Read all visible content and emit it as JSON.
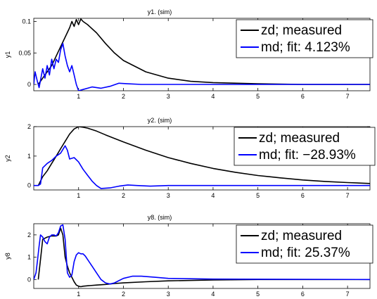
{
  "chart_data": [
    {
      "type": "line",
      "title": "y1. (sim)",
      "ylabel": "y1",
      "xlim": [
        0,
        7.5
      ],
      "ylim": [
        -0.01,
        0.105
      ],
      "xticks": [
        1,
        2,
        3,
        4,
        5,
        6,
        7
      ],
      "yticks": [
        0,
        0.05,
        0.1
      ],
      "ytick_labels": [
        "0",
        "0.05",
        "0.1"
      ],
      "legend_position": "outside-right",
      "series": [
        {
          "name": "zd; measured",
          "color": "#000000",
          "x": [
            0.1,
            0.2,
            0.3,
            0.4,
            0.5,
            0.6,
            0.7,
            0.8,
            0.85,
            0.9,
            0.95,
            1.0,
            1.05,
            1.1,
            1.2,
            1.4,
            1.6,
            1.8,
            2.0,
            2.5,
            3.0,
            3.5,
            4.0,
            5.0,
            6.0,
            7.5
          ],
          "y": [
            0.0,
            0.01,
            0.02,
            0.03,
            0.045,
            0.06,
            0.075,
            0.09,
            0.1,
            0.092,
            0.103,
            0.095,
            0.104,
            0.1,
            0.095,
            0.082,
            0.065,
            0.05,
            0.038,
            0.02,
            0.01,
            0.005,
            0.003,
            0.001,
            0.0,
            0.0
          ]
        },
        {
          "name": "md; fit: 4.123%",
          "color": "#0000ff",
          "x": [
            0.0,
            0.03,
            0.08,
            0.12,
            0.2,
            0.25,
            0.3,
            0.35,
            0.4,
            0.45,
            0.5,
            0.55,
            0.6,
            0.65,
            0.7,
            0.75,
            0.8,
            0.85,
            0.9,
            0.95,
            1.0,
            1.1,
            1.3,
            1.5,
            1.7,
            1.9,
            2.1,
            2.4,
            3.0,
            4.0,
            7.5
          ],
          "y": [
            0.0,
            0.02,
            0.005,
            -0.005,
            0.025,
            0.01,
            0.03,
            0.015,
            0.04,
            0.025,
            0.04,
            0.035,
            0.055,
            0.065,
            0.045,
            0.03,
            0.02,
            0.03,
            0.015,
            0.0,
            -0.01,
            -0.008,
            -0.004,
            -0.006,
            -0.003,
            0.002,
            0.001,
            0.0,
            0.0,
            0.0,
            0.0
          ]
        }
      ]
    },
    {
      "type": "line",
      "title": "y2. (sim)",
      "ylabel": "y2",
      "xlim": [
        0,
        7.5
      ],
      "ylim": [
        -0.15,
        2.0
      ],
      "xticks": [
        1,
        2,
        3,
        4,
        5,
        6,
        7
      ],
      "yticks": [
        0,
        1,
        2
      ],
      "ytick_labels": [
        "0",
        "1",
        "2"
      ],
      "legend_position": "outside-right",
      "series": [
        {
          "name": "zd; measured",
          "color": "#000000",
          "x": [
            0.1,
            0.2,
            0.3,
            0.4,
            0.5,
            0.6,
            0.7,
            0.8,
            0.9,
            1.0,
            1.1,
            1.2,
            1.4,
            1.6,
            1.8,
            2.0,
            2.5,
            3.0,
            3.5,
            4.0,
            4.5,
            5.0,
            5.5,
            6.0,
            6.5,
            7.0,
            7.5
          ],
          "y": [
            0.0,
            0.3,
            0.5,
            0.75,
            1.0,
            1.25,
            1.5,
            1.75,
            1.92,
            2.0,
            1.98,
            1.95,
            1.85,
            1.72,
            1.6,
            1.48,
            1.2,
            0.95,
            0.75,
            0.58,
            0.45,
            0.34,
            0.26,
            0.19,
            0.14,
            0.1,
            0.07
          ]
        },
        {
          "name": "md; fit: −28.93%",
          "color": "#0000ff",
          "x": [
            0.0,
            0.1,
            0.15,
            0.2,
            0.3,
            0.4,
            0.5,
            0.6,
            0.7,
            0.75,
            0.8,
            0.9,
            1.0,
            1.1,
            1.2,
            1.3,
            1.4,
            1.5,
            1.7,
            1.9,
            2.1,
            2.3,
            2.6,
            3.0,
            4.0,
            7.5
          ],
          "y": [
            0.0,
            0.0,
            0.05,
            0.6,
            0.75,
            0.85,
            1.0,
            1.1,
            1.35,
            1.2,
            0.9,
            0.95,
            0.8,
            0.55,
            0.35,
            0.15,
            0.0,
            -0.1,
            -0.08,
            -0.02,
            0.02,
            0.0,
            -0.02,
            0.0,
            0.0,
            0.0
          ]
        }
      ]
    },
    {
      "type": "line",
      "title": "y8. (sim)",
      "ylabel": "y8",
      "xlim": [
        0,
        7.5
      ],
      "ylim": [
        -0.4,
        2.5
      ],
      "xticks": [
        1,
        2,
        3,
        4,
        5,
        6,
        7
      ],
      "yticks": [
        0,
        1,
        2
      ],
      "ytick_labels": [
        "0",
        "1",
        "2"
      ],
      "legend_position": "outside-right",
      "series": [
        {
          "name": "zd; measured",
          "color": "#000000",
          "x": [
            0.1,
            0.15,
            0.2,
            0.3,
            0.4,
            0.5,
            0.55,
            0.6,
            0.65,
            0.7,
            0.75,
            0.8,
            0.85,
            0.9,
            0.95,
            1.0,
            1.05,
            1.1,
            1.2,
            1.4,
            1.6,
            1.8,
            2.0,
            2.5,
            3.0,
            4.0,
            5.0,
            7.5
          ],
          "y": [
            0.0,
            0.9,
            1.8,
            1.9,
            1.95,
            1.95,
            2.0,
            2.3,
            2.0,
            1.0,
            0.6,
            0.3,
            0.1,
            -0.1,
            -0.25,
            -0.3,
            -0.32,
            -0.3,
            -0.28,
            -0.25,
            -0.22,
            -0.18,
            -0.15,
            -0.1,
            -0.06,
            -0.02,
            0.0,
            0.0
          ]
        },
        {
          "name": "md; fit: 25.37%",
          "color": "#0000ff",
          "x": [
            0.0,
            0.05,
            0.08,
            0.12,
            0.15,
            0.2,
            0.25,
            0.3,
            0.35,
            0.4,
            0.45,
            0.5,
            0.55,
            0.6,
            0.65,
            0.7,
            0.75,
            0.8,
            0.85,
            0.9,
            0.95,
            1.0,
            1.05,
            1.1,
            1.15,
            1.2,
            1.3,
            1.4,
            1.5,
            1.6,
            1.7,
            1.8,
            1.9,
            2.0,
            2.2,
            2.4,
            2.7,
            3.0,
            4.0,
            7.5
          ],
          "y": [
            0.0,
            0.3,
            0.8,
            1.5,
            2.0,
            1.9,
            1.7,
            1.6,
            1.9,
            2.0,
            2.0,
            1.95,
            2.1,
            2.4,
            2.45,
            1.8,
            0.3,
            0.1,
            0.2,
            0.8,
            1.1,
            1.2,
            1.15,
            1.15,
            1.05,
            0.9,
            0.6,
            0.3,
            0.0,
            -0.15,
            -0.2,
            -0.15,
            -0.05,
            0.05,
            0.15,
            0.15,
            0.1,
            0.05,
            0.02,
            0.0
          ]
        }
      ]
    }
  ]
}
